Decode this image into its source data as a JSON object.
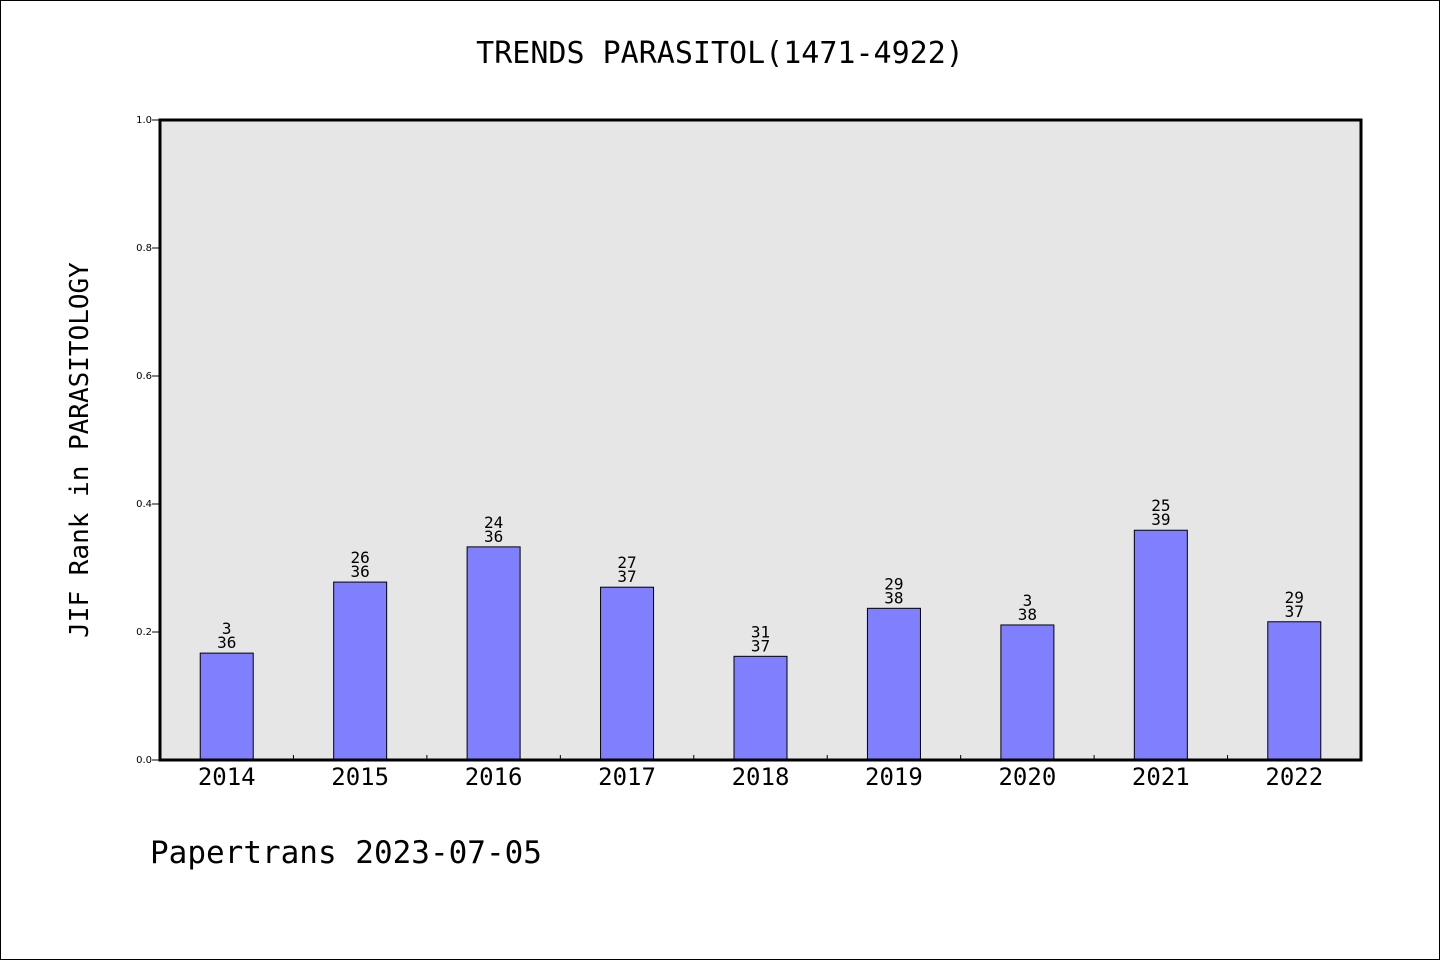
{
  "title": "TRENDS PARASITOL(1471-4922)",
  "footer": "Papertrans 2023-07-05",
  "colors": {
    "plot_background": "#e6e6e6",
    "bar_fill": "#8080ff",
    "bar_stroke": "#000000"
  },
  "chart_data": {
    "type": "bar",
    "title": "TRENDS PARASITOL(1471-4922)",
    "xlabel": "",
    "ylabel": "JIF Rank in PARASITOLOGY",
    "ylim": [
      0,
      1.0
    ],
    "yticks": [
      "0.0",
      "0.2",
      "0.4",
      "0.6",
      "0.8",
      "1.0"
    ],
    "grid": false,
    "categories": [
      "2014",
      "2015",
      "2016",
      "2017",
      "2018",
      "2019",
      "2020",
      "2021",
      "2022"
    ],
    "values": [
      0.167,
      0.278,
      0.333,
      0.27,
      0.162,
      0.237,
      0.211,
      0.359,
      0.216
    ],
    "labels_top": [
      "3",
      "26",
      "24",
      "27",
      "31",
      "29",
      "3",
      "25",
      "29"
    ],
    "labels_bottom": [
      "36",
      "36",
      "36",
      "37",
      "37",
      "38",
      "38",
      "39",
      "37"
    ]
  }
}
